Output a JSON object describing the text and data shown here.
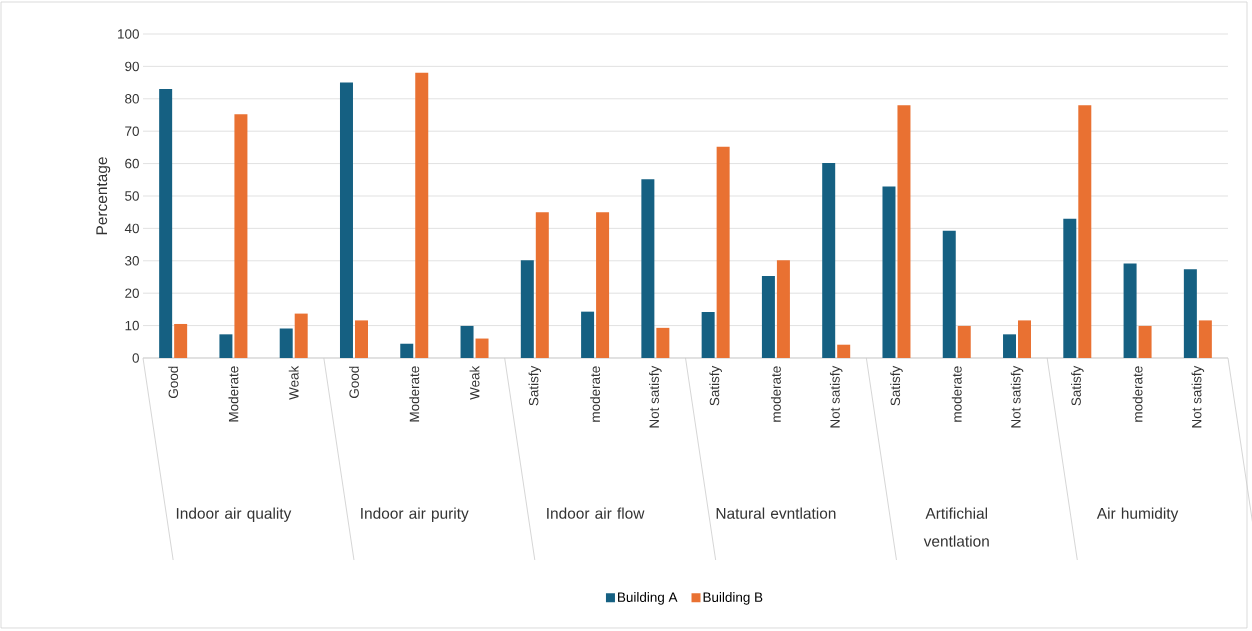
{
  "chart_data": {
    "type": "bar",
    "ylabel": "Percentage",
    "categories": [
      "Good",
      "Moderate",
      "Weak",
      "Good",
      "Moderate",
      "Weak",
      "Satisfy",
      "moderate",
      "Not satisfy",
      "Satisfy",
      "moderate",
      "Not satisfy",
      "Satisfy",
      "moderate",
      "Not satisfy",
      "Satisfy",
      "moderate",
      "Not satisfy"
    ],
    "annotations": [
      "Indoor air quality",
      "Indoor air purity",
      "Indoor air flow",
      "Natural evntlation",
      "Artifichial ventlation",
      "Air humidity"
    ],
    "series": [
      {
        "name": "Building A",
        "color": "#156082",
        "values": [
          83,
          7.3,
          9.1,
          85,
          4.4,
          9.9,
          30.2,
          14.3,
          55.2,
          14.2,
          25.3,
          60.2,
          52.9,
          39.3,
          7.3,
          43,
          29.2,
          27.4
        ]
      },
      {
        "name": "Building B",
        "color": "#e97132",
        "values": [
          10.5,
          75.2,
          13.7,
          11.6,
          88,
          6,
          45,
          45,
          9.3,
          65.2,
          30.2,
          4.1,
          78,
          9.9,
          11.6,
          78,
          9.9,
          11.6
        ]
      }
    ],
    "ylim": [
      0,
      100
    ],
    "yticks": [
      0,
      10,
      20,
      30,
      40,
      50,
      60,
      70,
      80,
      90,
      100
    ],
    "grid": "y",
    "legend": "bottom"
  }
}
